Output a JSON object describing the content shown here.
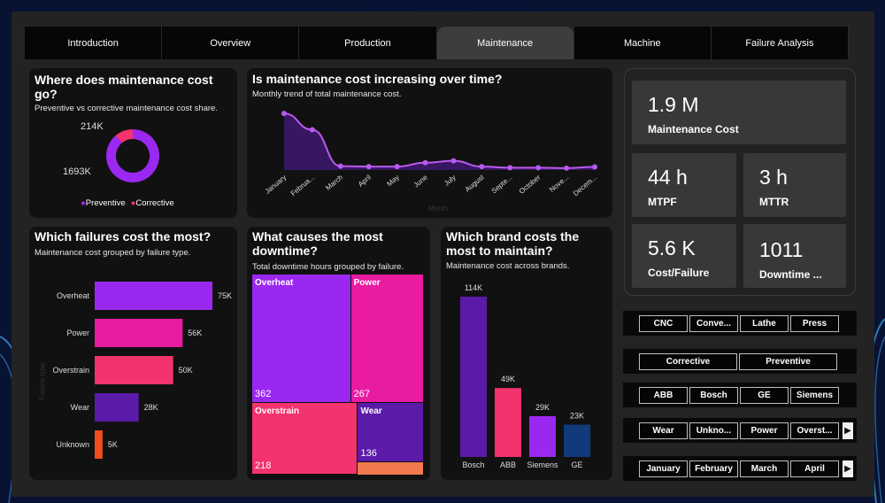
{
  "colors": {
    "purple": "#9b28f0",
    "pink": "#e81ba1",
    "rose": "#f2336d",
    "violet": "#5b1aa8",
    "orange": "#f04e1a",
    "navy": "#103a7a",
    "line": "#b95af0"
  },
  "tabs": [
    "Introduction",
    "Overview",
    "Production",
    "Maintenance",
    "Machine",
    "Failure Analysis"
  ],
  "active_tab": "Maintenance",
  "donut": {
    "title": "Where does maintenance cost go?",
    "subtitle": "Preventive vs corrective maintenance cost share.",
    "label_small": "214K",
    "label_large": "1693K",
    "legend": [
      "Preventive",
      "Corrective"
    ]
  },
  "trend": {
    "title": "Is maintenance cost increasing over time?",
    "subtitle": "Monthly trend of total maintenance cost.",
    "x_title": "Month"
  },
  "failures": {
    "title": "Which failures cost the most?",
    "subtitle": "Maintenance cost grouped by failure type.",
    "y_title": "Failure type"
  },
  "downtime": {
    "title": "What causes the most downtime?",
    "subtitle": "Total downtime hours grouped by failure."
  },
  "brands": {
    "title": "Which brand costs the most to maintain?",
    "subtitle": "Maintenance cost across brands."
  },
  "kpis": [
    {
      "value": "1.9 M",
      "label": "Maintenance Cost"
    },
    {
      "value": "44 h",
      "label": "MTPF"
    },
    {
      "value": "3 h",
      "label": "MTTR"
    },
    {
      "value": "5.6 K",
      "label": "Cost/Failure"
    },
    {
      "value": "1011",
      "label": "Downtime ..."
    }
  ],
  "slicers": {
    "machines": [
      "CNC",
      "Conve...",
      "Lathe",
      "Press"
    ],
    "types": [
      "Corrective",
      "Preventive"
    ],
    "brands": [
      "ABB",
      "Bosch",
      "GE",
      "Siemens"
    ],
    "failures": [
      "Wear",
      "Unkno...",
      "Power",
      "Overst..."
    ],
    "months": [
      "January",
      "February",
      "March",
      "April"
    ]
  },
  "chart_data": [
    {
      "type": "pie",
      "categories": [
        "Preventive",
        "Corrective"
      ],
      "values": [
        1693,
        214
      ],
      "data_labels": [
        "1693K",
        "214K"
      ]
    },
    {
      "type": "area",
      "categories": [
        "January",
        "Februa...",
        "March",
        "April",
        "May",
        "June",
        "July",
        "August",
        "Septe...",
        "October",
        "Nove...",
        "Decem..."
      ],
      "values": [
        395,
        310,
        120,
        118,
        118,
        138,
        148,
        118,
        112,
        112,
        110,
        116
      ]
    },
    {
      "type": "bar",
      "categories": [
        "Overheat",
        "Power",
        "Overstrain",
        "Wear",
        "Unknown"
      ],
      "values": [
        75,
        56,
        50,
        28,
        5
      ],
      "data_labels": [
        "75K",
        "56K",
        "50K",
        "28K",
        "5K"
      ]
    },
    {
      "type": "heatmap",
      "categories": [
        "Overheat",
        "Power",
        "Overstrain",
        "Wear"
      ],
      "values": [
        362,
        267,
        218,
        136
      ]
    },
    {
      "type": "bar",
      "categories": [
        "Bosch",
        "ABB",
        "Siemens",
        "GE"
      ],
      "values": [
        114,
        49,
        29,
        23
      ],
      "data_labels": [
        "114K",
        "49K",
        "29K",
        "23K"
      ]
    }
  ]
}
